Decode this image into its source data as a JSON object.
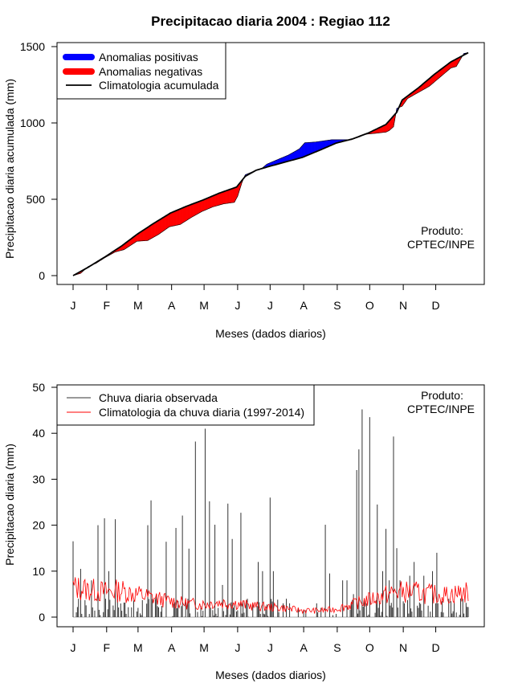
{
  "title": "Precipitacao diaria 2004 : Regiao 112",
  "product_label_line1": "Produto:",
  "product_label_line2": "CPTEC/INPE",
  "months": [
    "J",
    "F",
    "M",
    "A",
    "M",
    "J",
    "J",
    "A",
    "S",
    "O",
    "N",
    "D"
  ],
  "colors": {
    "positive": "#0000ff",
    "negative": "#ff0000",
    "climatology": "#000000",
    "observed": "#333333",
    "climatology_daily": "#ff0000"
  },
  "chart_data": [
    {
      "type": "area",
      "xlabel": "Meses (dados diarios)",
      "ylabel": "Precipitacao diaria acumulada (mm)",
      "xlim": [
        1,
        366
      ],
      "ylim": [
        0,
        1500
      ],
      "yticks": [
        0,
        500,
        1000,
        1500
      ],
      "legend_position": "top-left",
      "legend": [
        "Anomalias positivas",
        "Anomalias negativas",
        "Climatologia acumulada"
      ],
      "observed_cumulative": {
        "days": [
          1,
          8,
          15,
          22,
          31,
          40,
          48,
          60,
          70,
          80,
          90,
          100,
          110,
          120,
          130,
          140,
          150,
          153,
          157,
          160,
          170,
          175,
          180,
          190,
          200,
          210,
          215,
          225,
          230,
          240,
          250,
          258,
          262,
          266,
          270,
          280,
          290,
          293,
          297,
          300,
          305,
          310,
          320,
          330,
          340,
          350,
          355,
          362,
          366
        ],
        "values": [
          0,
          15,
          60,
          80,
          120,
          155,
          170,
          225,
          230,
          270,
          320,
          335,
          380,
          420,
          450,
          470,
          480,
          520,
          610,
          660,
          690,
          700,
          730,
          760,
          790,
          830,
          870,
          875,
          880,
          890,
          890,
          890,
          900,
          910,
          925,
          932,
          940,
          950,
          975,
          1095,
          1110,
          1160,
          1200,
          1240,
          1300,
          1360,
          1370,
          1455,
          1460
        ]
      },
      "climatology_cumulative": {
        "days": [
          1,
          15,
          31,
          46,
          60,
          75,
          91,
          106,
          121,
          136,
          152,
          160,
          170,
          182,
          195,
          213,
          230,
          244,
          259,
          274,
          290,
          300,
          305,
          320,
          335,
          350,
          366
        ],
        "values": [
          0,
          55,
          125,
          195,
          270,
          340,
          410,
          455,
          495,
          540,
          580,
          650,
          690,
          715,
          740,
          775,
          825,
          868,
          895,
          935,
          990,
          1070,
          1150,
          1230,
          1320,
          1400,
          1460
        ]
      }
    },
    {
      "type": "bar",
      "xlabel": "Meses (dados diarios)",
      "ylabel": "Precipitacao diaria (mm)",
      "xlim": [
        1,
        366
      ],
      "ylim": [
        0,
        50
      ],
      "yticks": [
        0,
        10,
        20,
        30,
        40,
        50
      ],
      "legend_position": "top-left",
      "legend": [
        "Chuva diaria observada",
        "Climatologia da chuva diaria (1997-2014)"
      ],
      "observed_daily_peaks": {
        "days": [
          1,
          8,
          18,
          24,
          30,
          34,
          40,
          70,
          73,
          78,
          87,
          96,
          102,
          108,
          114,
          123,
          127,
          132,
          135,
          139,
          144,
          148,
          156,
          162,
          172,
          176,
          183,
          186,
          195,
          198,
          201,
          209,
          216,
          226,
          230,
          234,
          238,
          250,
          254,
          260,
          263,
          265,
          268,
          275,
          282,
          287,
          290,
          293,
          297,
          300,
          303,
          307,
          312,
          316,
          320,
          325,
          333,
          337,
          343,
          348,
          355,
          358
        ],
        "values": [
          16.5,
          10.5,
          8,
          20,
          21.5,
          10,
          21.3,
          20,
          25.4,
          5,
          16.4,
          19.4,
          22.1,
          14.9,
          38.2,
          41,
          25.2,
          20.1,
          2,
          7,
          24.7,
          17,
          22.7,
          4,
          12,
          10,
          26,
          10,
          3,
          4,
          3,
          2,
          1.5,
          3,
          2,
          20.1,
          9.5,
          8,
          8,
          5,
          32,
          36.5,
          45.2,
          43.5,
          24.5,
          10,
          19.2,
          8,
          39.3,
          15,
          8,
          3,
          9,
          12,
          2,
          9,
          10,
          14,
          1,
          4,
          1,
          0.5
        ]
      },
      "climatology_daily_levels": {
        "days": [
          1,
          15,
          30,
          45,
          60,
          75,
          90,
          105,
          120,
          135,
          150,
          165,
          180,
          195,
          210,
          225,
          240,
          255,
          270,
          285,
          300,
          315,
          330,
          345,
          366
        ],
        "values": [
          6.5,
          6.0,
          5.5,
          5.8,
          5.0,
          4.2,
          3.5,
          3.0,
          2.8,
          3.2,
          3.0,
          2.5,
          2.2,
          2.0,
          1.5,
          1.4,
          1.6,
          2.5,
          3.5,
          4.5,
          5.5,
          5.5,
          5.0,
          4.8,
          5.5
        ]
      }
    }
  ]
}
